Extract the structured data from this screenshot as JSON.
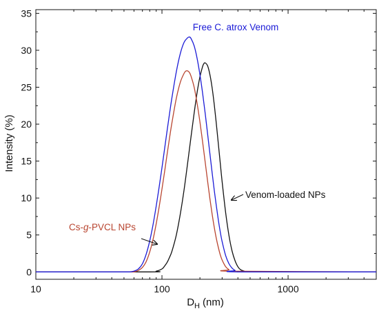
{
  "chart_data": {
    "type": "line",
    "xscale": "log",
    "xlabel": {
      "main": "D",
      "sub": "H",
      "unit": "(nm)"
    },
    "ylabel": "Intensity (%)",
    "xlim": [
      10,
      5000
    ],
    "ylim": [
      -1,
      35.5
    ],
    "xticks": [
      10,
      100,
      1000
    ],
    "xtick_labels": [
      "10",
      "100",
      "1000"
    ],
    "yticks": [
      0,
      5,
      10,
      15,
      20,
      25,
      30,
      35
    ],
    "ytick_labels": [
      "0",
      "5",
      "10",
      "15",
      "20",
      "25",
      "30",
      "35"
    ],
    "grid": false,
    "series": [
      {
        "name": "Free C. atrox Venom",
        "color": "#1a1ad6",
        "x": [
          10,
          45,
          55,
          60,
          65,
          70,
          75,
          80,
          85,
          90,
          95,
          100,
          105,
          110,
          115,
          120,
          130,
          140,
          150,
          160,
          165,
          170,
          180,
          190,
          200,
          210,
          220,
          230,
          240,
          250,
          260,
          270,
          280,
          290,
          300,
          320,
          340,
          360,
          380,
          400,
          5000
        ],
        "values": [
          0,
          0,
          0,
          0.1,
          0.4,
          1.1,
          2.4,
          4.2,
          6.4,
          8.9,
          11.5,
          14.1,
          16.7,
          19.2,
          21.5,
          23.6,
          27.1,
          29.6,
          31.1,
          31.7,
          31.8,
          31.6,
          30.6,
          28.9,
          26.7,
          24.2,
          21.5,
          18.7,
          16.0,
          13.4,
          11.0,
          8.9,
          7.0,
          5.4,
          4.1,
          2.2,
          1.1,
          0.5,
          0.2,
          0,
          0
        ]
      },
      {
        "name": "Cs-g-PVCL NPs",
        "color": "#b8442f",
        "x": [
          10,
          50,
          60,
          65,
          70,
          75,
          80,
          85,
          90,
          95,
          100,
          105,
          110,
          115,
          120,
          130,
          140,
          150,
          155,
          160,
          165,
          170,
          180,
          190,
          200,
          210,
          220,
          230,
          240,
          250,
          260,
          270,
          280,
          290,
          300,
          320,
          340,
          360,
          5000
        ],
        "values": [
          0,
          0,
          0,
          0.2,
          0.6,
          1.4,
          2.7,
          4.4,
          6.5,
          8.8,
          11.2,
          13.6,
          16.0,
          18.2,
          20.2,
          23.5,
          25.7,
          26.9,
          27.2,
          27.2,
          27.0,
          26.5,
          25.0,
          22.8,
          20.3,
          17.6,
          14.9,
          12.3,
          9.9,
          7.8,
          6.0,
          4.5,
          3.3,
          2.3,
          1.6,
          0.7,
          0.3,
          0.1,
          0
        ]
      },
      {
        "name": "Venom-loaded NPs",
        "color": "#111111",
        "x": [
          10,
          80,
          90,
          100,
          105,
          110,
          115,
          120,
          130,
          140,
          150,
          160,
          170,
          180,
          190,
          200,
          210,
          215,
          220,
          230,
          240,
          250,
          260,
          270,
          280,
          290,
          300,
          320,
          340,
          360,
          380,
          400,
          420,
          450,
          480,
          5000
        ],
        "values": [
          0,
          0,
          0.1,
          0.4,
          0.8,
          1.3,
          2.0,
          2.8,
          5.0,
          7.9,
          11.2,
          14.8,
          18.3,
          21.5,
          24.3,
          26.4,
          27.8,
          28.2,
          28.3,
          27.9,
          26.7,
          24.9,
          22.6,
          20.0,
          17.3,
          14.7,
          12.2,
          8.0,
          4.9,
          2.8,
          1.5,
          0.7,
          0.3,
          0.1,
          0,
          0
        ]
      }
    ],
    "annotations": [
      {
        "text": "Free C. atrox Venom",
        "color": "#1a1ad6",
        "arrow": false
      },
      {
        "text_before": "Cs-",
        "text_italic": "g",
        "text_after": "-PVCL NPs",
        "color": "#b8442f",
        "arrow": true
      },
      {
        "text": "Venom-loaded NPs",
        "color": "#111111",
        "arrow": true
      }
    ]
  }
}
